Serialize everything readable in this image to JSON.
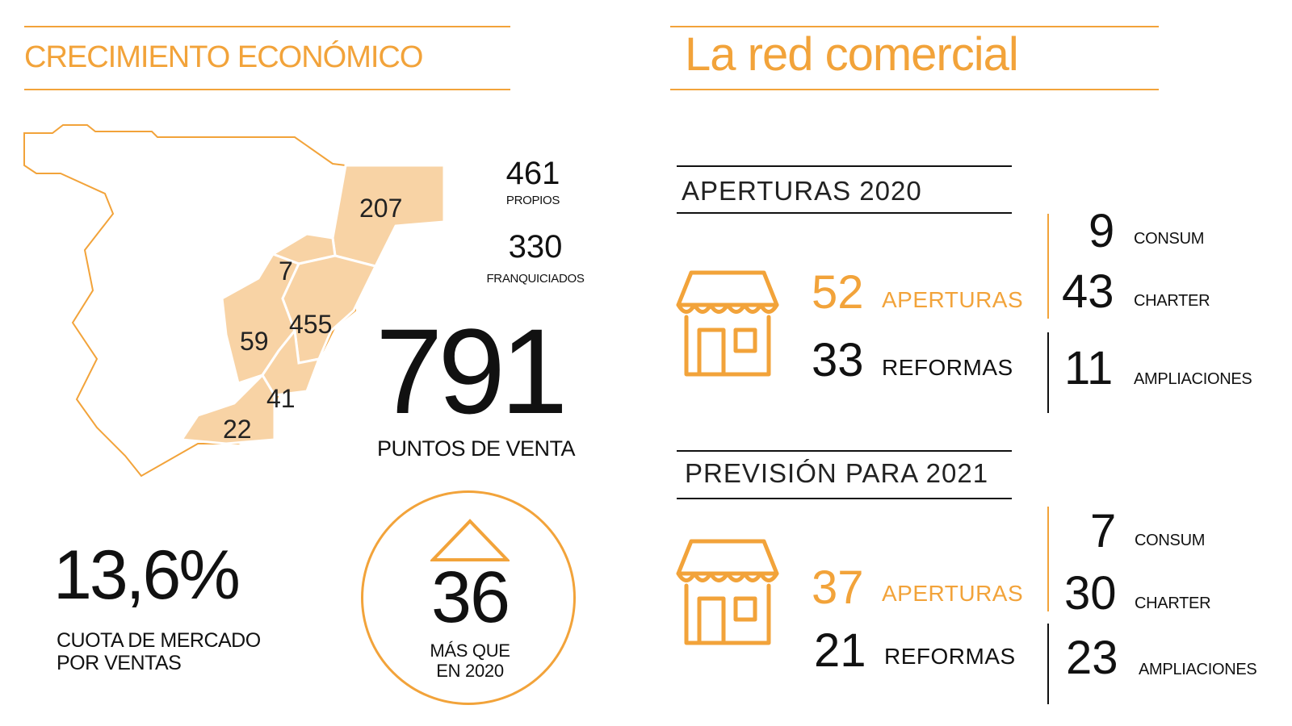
{
  "colors": {
    "accent": "#f2a33a",
    "map_fill": "#f8d3a5",
    "text": "#111111"
  },
  "left": {
    "title": "CRECIMIENTO ECONÓMICO",
    "map_regions": [
      "207",
      "7",
      "59",
      "455",
      "41",
      "22"
    ],
    "propios_value": "461",
    "propios_label": "PROPIOS",
    "franquiciados_value": "330",
    "franquiciados_label": "FRANQUICIADOS",
    "total_value": "791",
    "total_label": "PUNTOS DE VENTA",
    "market_share_value": "13,6%",
    "market_share_label_1": "CUOTA DE MERCADO",
    "market_share_label_2": "POR VENTAS",
    "growth_value": "36",
    "growth_label_1": "MÁS QUE",
    "growth_label_2": "EN 2020"
  },
  "right": {
    "title": "La red comercial",
    "aperturas_2020": {
      "heading": "APERTURAS 2020",
      "openings_value": "52",
      "openings_label": "APERTURAS",
      "reforms_value": "33",
      "reforms_label": "REFORMAS",
      "consum_value": "9",
      "consum_label": "CONSUM",
      "charter_value": "43",
      "charter_label": "CHARTER",
      "ampliaciones_value": "11",
      "ampliaciones_label": "AMPLIACIONES"
    },
    "prevision_2021": {
      "heading": "PREVISIÓN PARA 2021",
      "openings_value": "37",
      "openings_label": "APERTURAS",
      "reforms_value": "21",
      "reforms_label": "REFORMAS",
      "consum_value": "7",
      "consum_label": "CONSUM",
      "charter_value": "30",
      "charter_label": "CHARTER",
      "ampliaciones_value": "23",
      "ampliaciones_label": "AMPLIACIONES"
    }
  }
}
